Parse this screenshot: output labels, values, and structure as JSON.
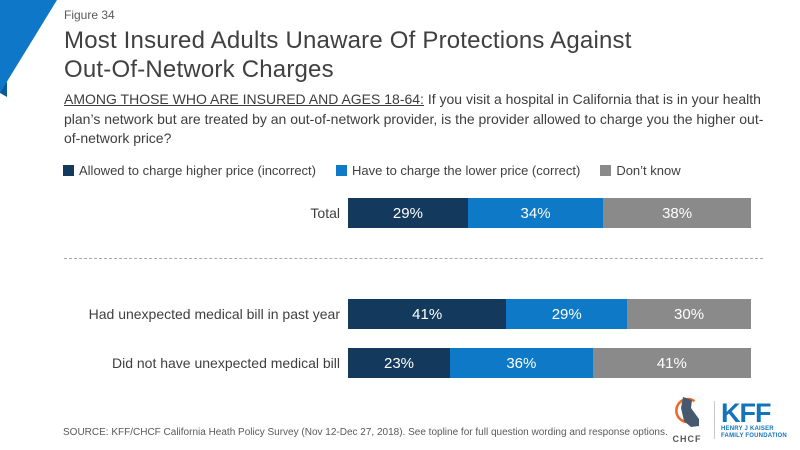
{
  "figure_label": "Figure 34",
  "title_line1": "Most Insured Adults Unaware Of Protections Against",
  "title_line2": "Out-Of-Network Charges",
  "subtitle": {
    "underlined": "AMONG THOSE WHO ARE INSURED AND AGES 18-64:",
    "rest": " If you visit a hospital in California that is in your health plan’s network but are treated by an out-of-network provider, is the provider allowed to charge you the higher out-of-network price?"
  },
  "colors": {
    "incorrect_navy": "#133A5C",
    "correct_blue": "#0E79C6",
    "dont_know_gray": "#8A8A8A",
    "ribbon_blue": "#0F77C8",
    "ribbon_fold_blue": "#0C5A95",
    "kff_blue": "#1374BC",
    "chcf_slate": "#47596E",
    "chcf_orange": "#F26722"
  },
  "chart_data": {
    "type": "bar",
    "variant": "horizontal-stacked",
    "value_format": "percent",
    "xlim": [
      0,
      100
    ],
    "grid": false,
    "legend_position": "top",
    "categories": [
      "Total",
      "Had unexpected medical bill in past year",
      "Did not have unexpected medical bill"
    ],
    "series": [
      {
        "name": "Allowed to charge higher price (incorrect)",
        "color": "#133A5C",
        "values": [
          29,
          41,
          23
        ]
      },
      {
        "name": "Have to charge the lower price (correct)",
        "color": "#0E79C6",
        "values": [
          34,
          29,
          36
        ]
      },
      {
        "name": "Don’t know",
        "color": "#8A8A8A",
        "values": [
          38,
          30,
          41
        ]
      }
    ]
  },
  "footer": {
    "source": "SOURCE: KFF/CHCF California Heath Policy Survey (Nov 12-Dec 27, 2018). See topline for full question wording and response options."
  },
  "logos": {
    "chcf_label": "CHCF",
    "kff_label": "KFF",
    "kff_sub1": "HENRY J KAISER",
    "kff_sub2": "FAMILY FOUNDATION"
  }
}
